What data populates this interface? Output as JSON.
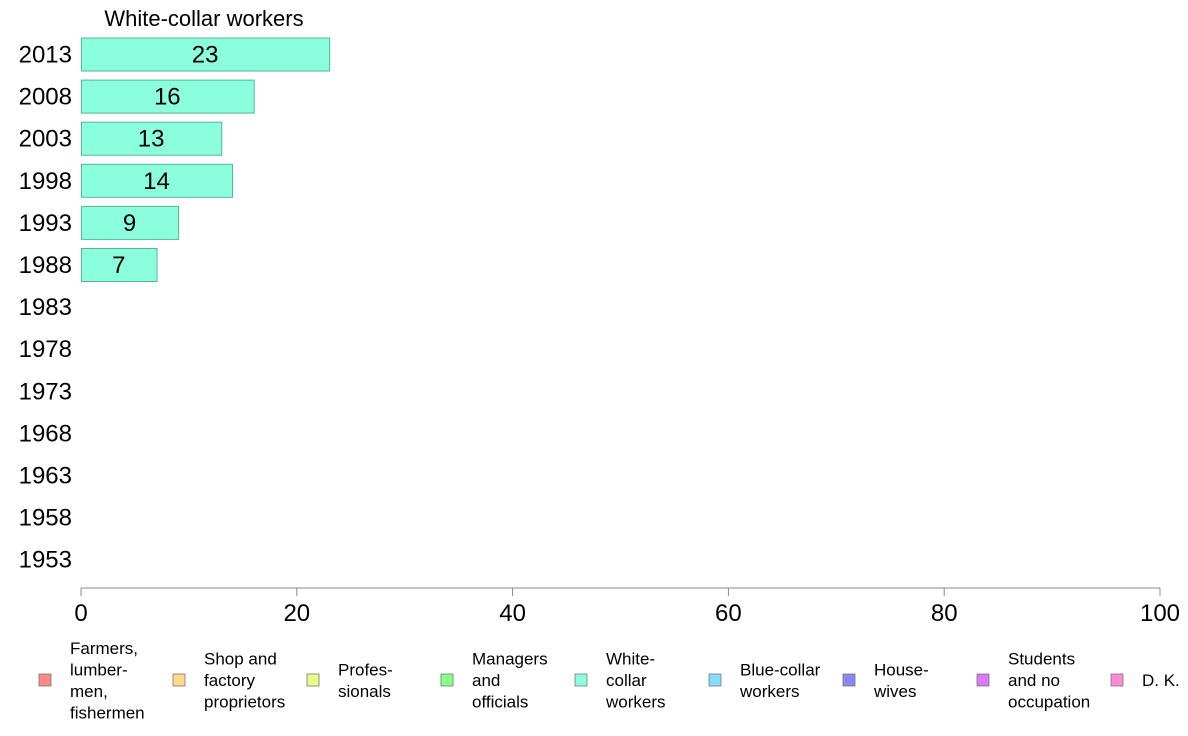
{
  "chart_data": {
    "type": "bar",
    "orientation": "horizontal",
    "title": "White-collar workers",
    "categories": [
      "2013",
      "2008",
      "2003",
      "1998",
      "1993",
      "1988",
      "1983",
      "1978",
      "1973",
      "1968",
      "1963",
      "1958",
      "1953"
    ],
    "values": [
      23,
      16,
      13,
      14,
      9,
      7,
      null,
      null,
      null,
      null,
      null,
      null,
      null
    ],
    "data_labels": [
      "23",
      "16",
      "13",
      "14",
      "9",
      "7",
      "",
      "",
      "",
      "",
      "",
      "",
      ""
    ],
    "xlim": [
      0,
      100
    ],
    "x_ticks": [
      0,
      20,
      40,
      60,
      80,
      100
    ],
    "grid": false,
    "bar_color": "#8bffdd",
    "bar_stroke": "#4fb898",
    "legend_placement": "bottom",
    "legend": [
      {
        "label": [
          "Farmers,",
          "lumber-",
          "men,",
          "fishermen"
        ],
        "color": "#ff8888"
      },
      {
        "label": [
          "Shop and",
          "factory",
          "proprietors"
        ],
        "color": "#ffd88a"
      },
      {
        "label": [
          "Profes-",
          "sionals"
        ],
        "color": "#e6ff88"
      },
      {
        "label": [
          "Managers",
          "and",
          "officials"
        ],
        "color": "#88ff88"
      },
      {
        "label": [
          "White-",
          "collar",
          "workers"
        ],
        "color": "#8bffdd"
      },
      {
        "label": [
          "Blue-collar",
          "workers"
        ],
        "color": "#88ddff"
      },
      {
        "label": [
          "House-",
          "wives"
        ],
        "color": "#8888ee"
      },
      {
        "label": [
          "Students",
          "and no",
          "occupation"
        ],
        "color": "#dd77ff"
      },
      {
        "label": [
          "D. K."
        ],
        "color": "#ff88dd"
      }
    ]
  }
}
